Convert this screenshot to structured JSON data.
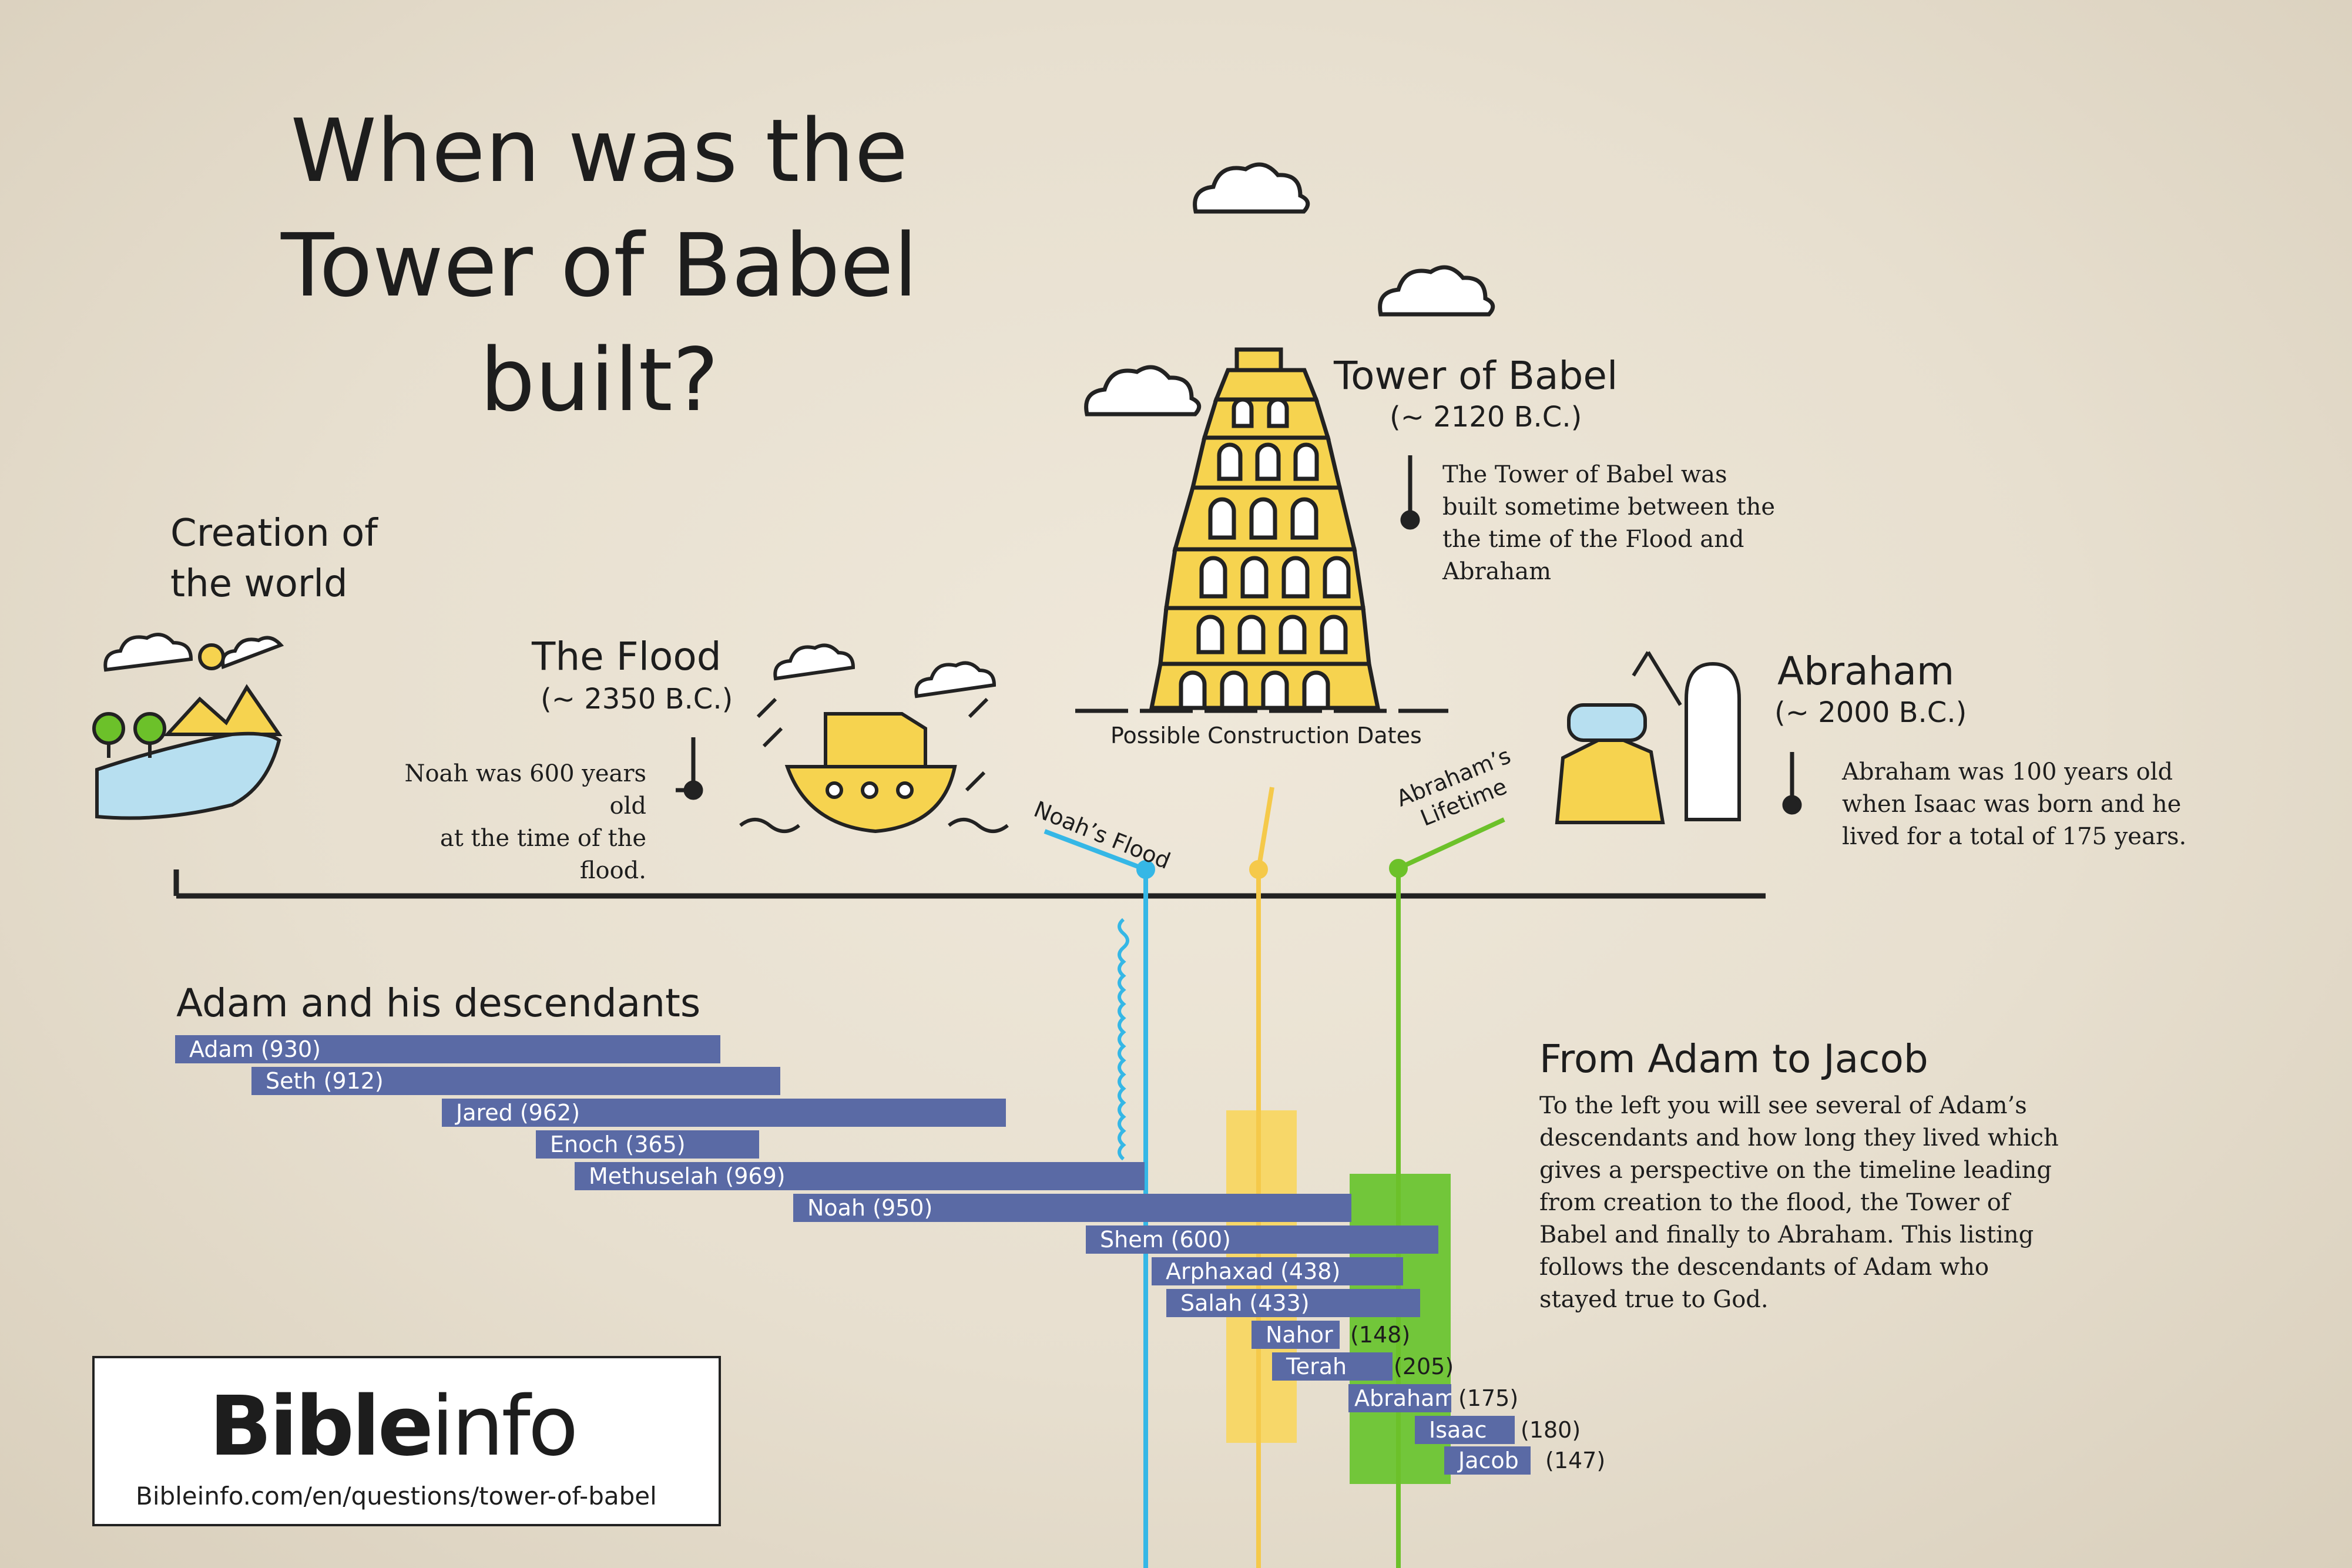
{
  "title_line1": "When was the",
  "title_line2": "Tower of Babel built?",
  "creation": {
    "line1": "Creation of",
    "line2": "the world"
  },
  "flood": {
    "heading": "The Flood",
    "date": "(~ 2350 B.C.)",
    "note_line1": "Noah was 600 years old",
    "note_line2": "at the time of the flood."
  },
  "babel": {
    "heading": "Tower of Babel",
    "date": "(~ 2120 B.C.)",
    "note_lines": [
      "The Tower of Babel was",
      "built sometime between the",
      "the time of the Flood and",
      "Abraham"
    ],
    "construction_label": "Possible Construction Dates"
  },
  "abraham": {
    "heading": "Abraham",
    "date": "(~ 2000 B.C.)",
    "note_lines": [
      "Abraham was 100 years old",
      "when Isaac was born and he",
      "lived for a total of 175 years."
    ]
  },
  "marker_labels": {
    "flood": "Noah’s Flood",
    "abraham_line1": "Abraham’s",
    "abraham_line2": "Lifetime"
  },
  "descendants_heading": "Adam and his descendants",
  "descendants": [
    {
      "label": "Adam (930)",
      "outside": ""
    },
    {
      "label": "Seth (912)",
      "outside": ""
    },
    {
      "label": "Jared (962)",
      "outside": ""
    },
    {
      "label": "Enoch (365)",
      "outside": ""
    },
    {
      "label": "Methuselah (969)",
      "outside": ""
    },
    {
      "label": "Noah (950)",
      "outside": ""
    },
    {
      "label": "Shem (600)",
      "outside": ""
    },
    {
      "label": "Arphaxad (438)",
      "outside": ""
    },
    {
      "label": "Salah (433)",
      "outside": ""
    },
    {
      "label": "Nahor",
      "outside": "(148)"
    },
    {
      "label": "Terah",
      "outside": "(205)"
    },
    {
      "label": "Abraham",
      "outside": "(175)"
    },
    {
      "label": "Isaac",
      "outside": "(180)"
    },
    {
      "label": "Jacob",
      "outside": "(147)"
    }
  ],
  "adam_to_jacob": {
    "heading": "From Adam to Jacob",
    "lines": [
      "To the left you will see several of Adam’s",
      "descendants and how long they lived which",
      "gives a perspective on the timeline leading",
      "from creation to the flood, the Tower of",
      "Babel and finally to Abraham. This listing",
      "follows the descendants of Adam who",
      "stayed true to God."
    ]
  },
  "logo": {
    "brand_bold": "Bible",
    "brand_light": "info",
    "url": "Bibleinfo.com/en/questions/tower-of-babel"
  },
  "colors": {
    "bar": "#5a6aa5",
    "flood_line": "#35b7e6",
    "babel_line": "#f5c94a",
    "babel_band": "#f7d769",
    "abraham_line": "#6cc12a",
    "abraham_band": "#72c63a",
    "tower_fill": "#f6d34f"
  }
}
